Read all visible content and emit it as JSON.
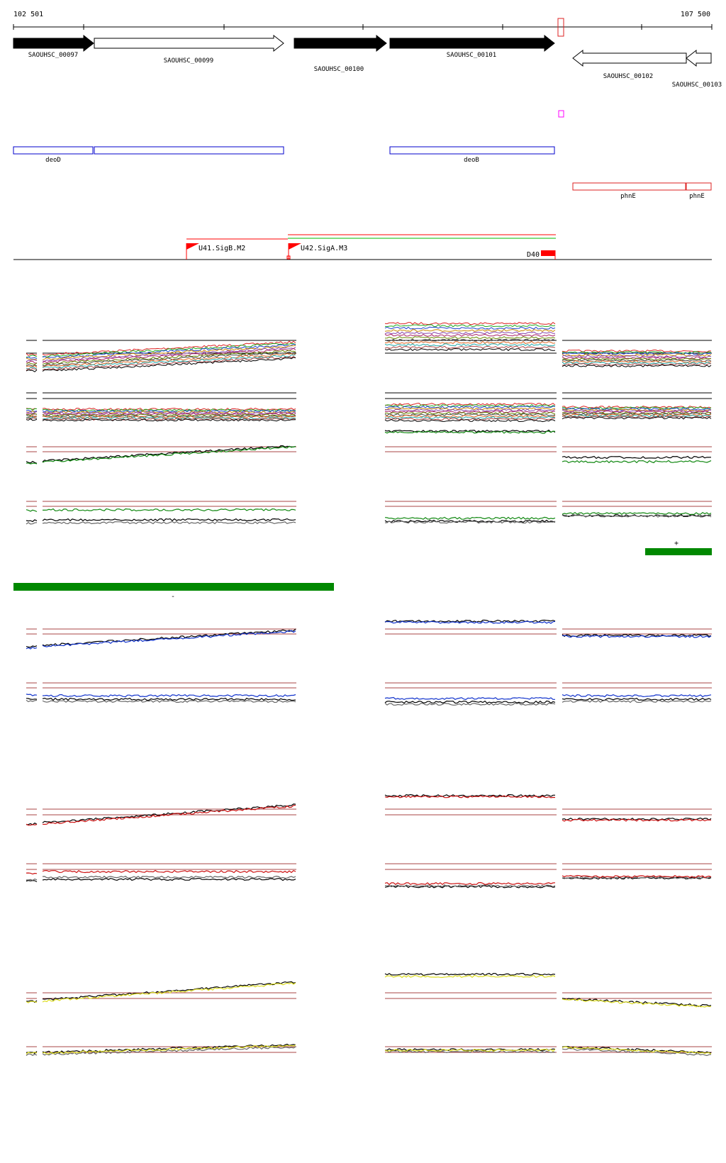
{
  "ruler": {
    "start_label": "102 501",
    "end_label": "107 500",
    "start": 102501,
    "end": 107500
  },
  "genes": [
    {
      "id": "SAOUHSC_00097",
      "strand": "+",
      "filled": true,
      "start": 102501,
      "end": 103077
    },
    {
      "id": "SAOUHSC_00099",
      "strand": "+",
      "filled": false,
      "start": 103087,
      "end": 104458
    },
    {
      "id": "SAOUHSC_00100",
      "strand": "+",
      "filled": true,
      "start": 104536,
      "end": 105201
    },
    {
      "id": "SAOUHSC_00101",
      "strand": "+",
      "filled": true,
      "start": 105217,
      "end": 106397
    },
    {
      "id": "SAOUHSC_00102",
      "strand": "-",
      "filled": false,
      "start": 106526,
      "end": 107337
    },
    {
      "id": "SAOUHSC_00103",
      "strand": "-",
      "filled": false,
      "start": 107343,
      "end": 107500
    }
  ],
  "annotations_blue": [
    {
      "label": "deoD",
      "start": 102501,
      "end": 103077
    },
    {
      "label": "",
      "start": 103087,
      "end": 104458
    },
    {
      "label": "deoB",
      "start": 105217,
      "end": 106397
    }
  ],
  "annotations_red": [
    {
      "label": "phnE",
      "start": 106526,
      "end": 107337
    },
    {
      "label": "phnE",
      "start": 107343,
      "end": 107500
    }
  ],
  "promoters": [
    {
      "label": "U41.SigB.M2",
      "position": 103748
    },
    {
      "label": "U42.SigA.M3",
      "position": 104484
    }
  ],
  "terminator": {
    "label": "D40",
    "start": 106301,
    "end": 106410
  },
  "strand_markers": {
    "plus": "+",
    "minus": "-"
  },
  "colors": {
    "gene_fill": "#000000",
    "annotation_blue": "#0000cc",
    "annotation_red": "#dd2222",
    "promoter": "#ff0000",
    "transcript_green": "#00bb00",
    "strand_bar": "#008800",
    "ref_line": "#aa4444",
    "tile_marker": "#ff00ff",
    "track_green": "#118811",
    "track_blue": "#1133cc",
    "track_red": "#cc1111",
    "track_yellow": "#dddd22"
  }
}
